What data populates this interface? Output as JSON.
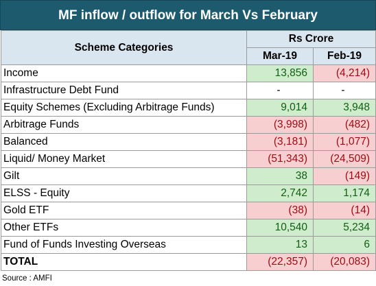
{
  "title": "MF inflow / outflow for March Vs February",
  "header": {
    "category_label": "Scheme Categories",
    "unit_label": "Rs Crore",
    "col_mar": "Mar-19",
    "col_feb": "Feb-19"
  },
  "rows": [
    {
      "category": "Income",
      "mar": "13,856",
      "feb": "(4,214)",
      "mar_sign": "pos",
      "feb_sign": "neg"
    },
    {
      "category": "Infrastructure Debt Fund",
      "mar": "-",
      "feb": "-",
      "mar_sign": "neutral",
      "feb_sign": "neutral"
    },
    {
      "category": "Equity Schemes (Excluding Arbitrage Funds)",
      "mar": "9,014",
      "feb": "3,948",
      "mar_sign": "pos",
      "feb_sign": "pos"
    },
    {
      "category": "Arbitrage Funds",
      "mar": "(3,998)",
      "feb": "(482)",
      "mar_sign": "neg",
      "feb_sign": "neg"
    },
    {
      "category": "Balanced",
      "mar": "(3,181)",
      "feb": "(1,077)",
      "mar_sign": "neg",
      "feb_sign": "neg"
    },
    {
      "category": "Liquid/ Money Market",
      "mar": "(51,343)",
      "feb": "(24,509)",
      "mar_sign": "neg",
      "feb_sign": "neg"
    },
    {
      "category": "Gilt",
      "mar": "38",
      "feb": "(149)",
      "mar_sign": "pos",
      "feb_sign": "neg"
    },
    {
      "category": "ELSS - Equity",
      "mar": "2,742",
      "feb": "1,174",
      "mar_sign": "pos",
      "feb_sign": "pos"
    },
    {
      "category": "Gold ETF",
      "mar": "(38)",
      "feb": "(14)",
      "mar_sign": "neg",
      "feb_sign": "neg"
    },
    {
      "category": "Other ETFs",
      "mar": "10,540",
      "feb": "5,234",
      "mar_sign": "pos",
      "feb_sign": "pos"
    },
    {
      "category": "Fund of Funds Investing Overseas",
      "mar": "13",
      "feb": "6",
      "mar_sign": "pos",
      "feb_sign": "pos"
    }
  ],
  "total": {
    "category": "TOTAL",
    "mar": "(22,357)",
    "feb": "(20,083)",
    "mar_sign": "neg",
    "feb_sign": "neg"
  },
  "source": "Source : AMFI",
  "colors": {
    "title_bg": "#1d5a6e",
    "header_bg": "#d9e5ef",
    "positive_bg": "#cfeccc",
    "positive_text": "#0f5e12",
    "negative_bg": "#f8cfd1",
    "negative_text": "#9b0a12"
  }
}
